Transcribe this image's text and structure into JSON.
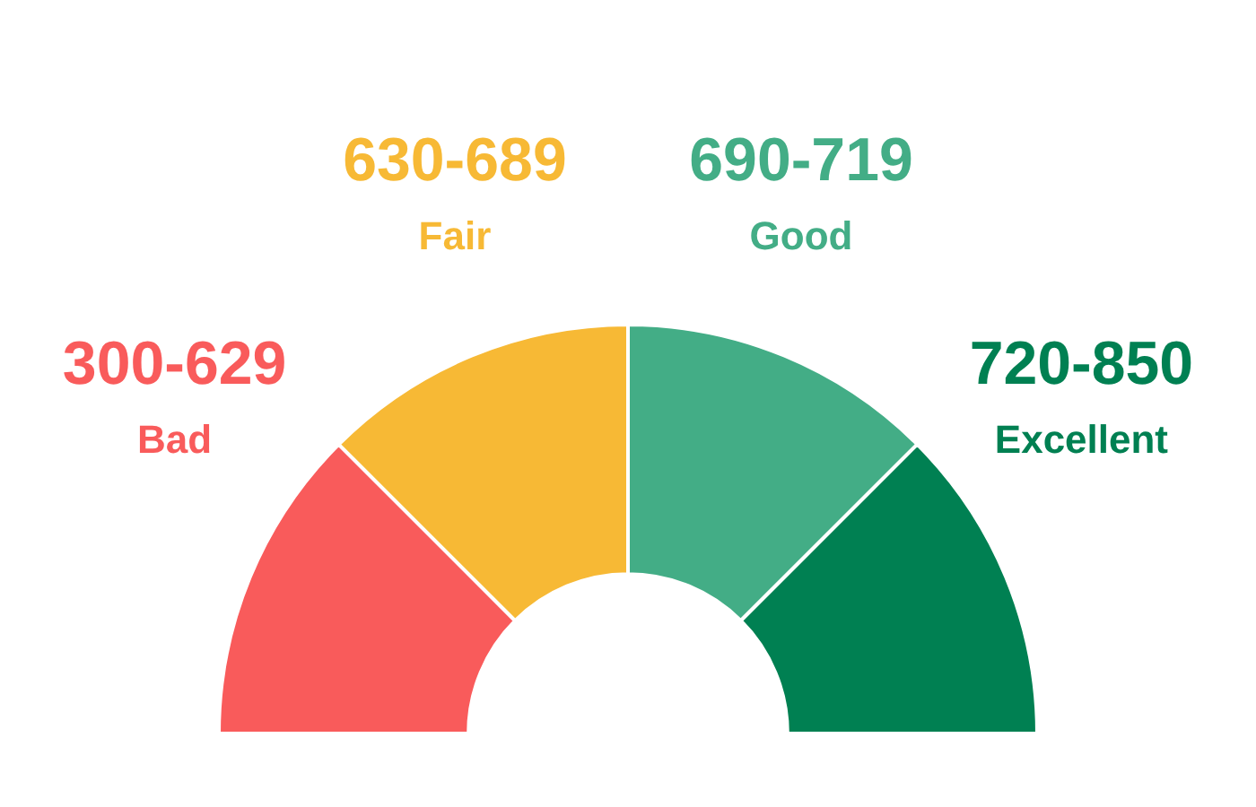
{
  "chart_data": {
    "type": "donut",
    "categories": [
      "Bad",
      "Fair",
      "Good",
      "Excellent"
    ],
    "values": [
      25,
      25,
      25,
      25
    ],
    "colors": [
      "#f95b5b",
      "#f7b935",
      "#43ad86",
      "#008052"
    ],
    "value_labels": [
      "300-629",
      "630-689",
      "690-719",
      "720-850"
    ],
    "legend": false
  }
}
